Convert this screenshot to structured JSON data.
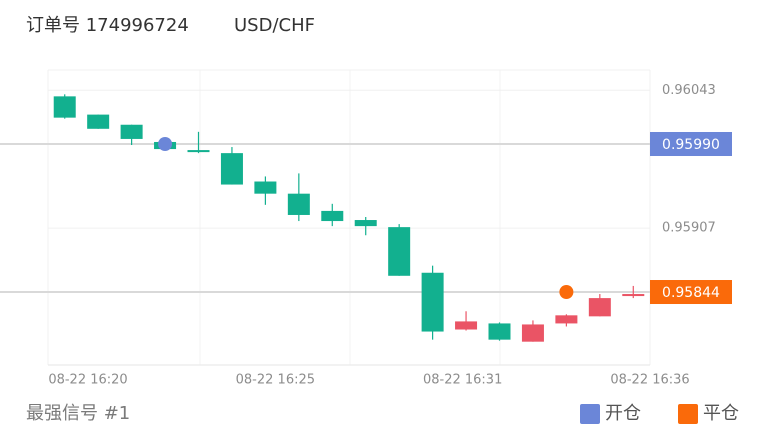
{
  "header": {
    "order": "订单号 174996724",
    "symbol": "USD/CHF"
  },
  "footer": "最强信号 #1",
  "chart_data": {
    "type": "candlestick",
    "x_labels": [
      "08-22 16:20",
      "08-22 16:25",
      "08-22 16:31",
      "08-22 16:36"
    ],
    "open": [
      0.96037,
      0.96019,
      0.96009,
      0.95992,
      0.95984,
      0.95981,
      0.95953,
      0.95941,
      0.95924,
      0.95915,
      0.95908,
      0.95863,
      0.95807,
      0.95813,
      0.95795,
      0.95813,
      0.9582,
      0.9584
    ],
    "high": [
      0.96039,
      0.96019,
      0.96009,
      0.95992,
      0.96002,
      0.95987,
      0.95958,
      0.95961,
      0.95931,
      0.95918,
      0.95911,
      0.9587,
      0.95825,
      0.95814,
      0.95816,
      0.95822,
      0.95842,
      0.9585
    ],
    "low": [
      0.96015,
      0.96005,
      0.95989,
      0.95985,
      0.95981,
      0.9595,
      0.9593,
      0.95914,
      0.95909,
      0.959,
      0.9586,
      0.95797,
      0.95806,
      0.95796,
      0.95795,
      0.9581,
      0.9582,
      0.95838
    ],
    "close": [
      0.96016,
      0.96005,
      0.95995,
      0.95985,
      0.95982,
      0.9595,
      0.95941,
      0.9592,
      0.95914,
      0.95909,
      0.9586,
      0.95805,
      0.95815,
      0.95797,
      0.95812,
      0.95821,
      0.95838,
      0.95842
    ],
    "up_color": "#ea5465",
    "down_color": "#12b08f",
    "ylim": [
      0.95772,
      0.96063
    ],
    "yticks": [
      0.96043,
      0.95907
    ],
    "markers": [
      {
        "name": "开仓",
        "color": "#6b86d8",
        "index": 3,
        "price": 0.9599,
        "price_label": "0.95990"
      },
      {
        "name": "平仓",
        "color": "#fa6a0a",
        "index": 15,
        "price": 0.95844,
        "price_label": "0.95844"
      }
    ]
  }
}
